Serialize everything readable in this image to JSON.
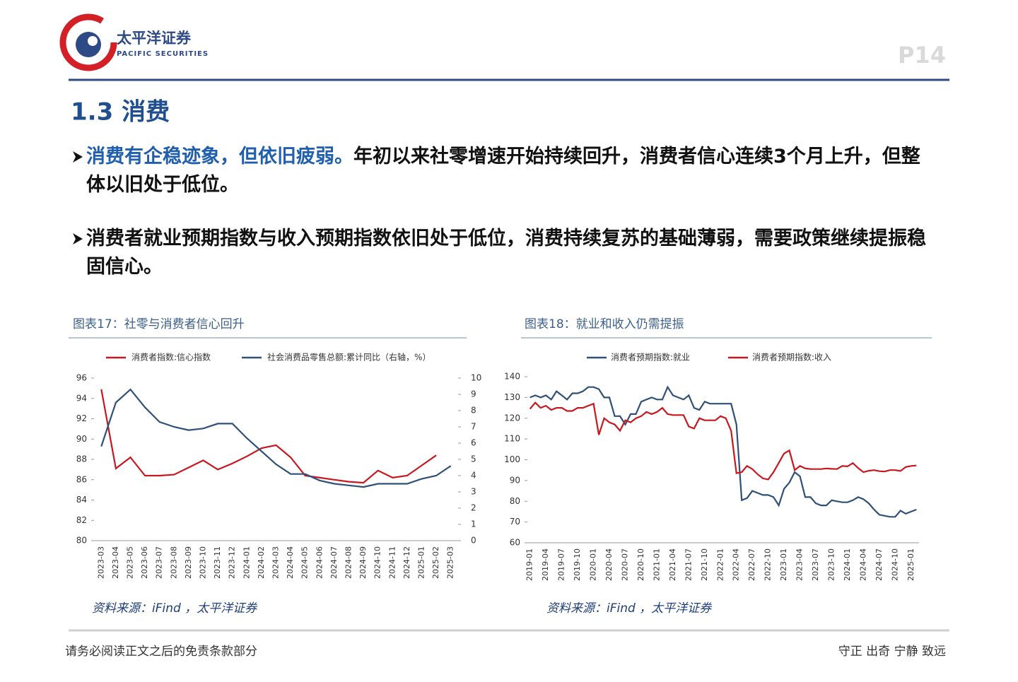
{
  "header": {
    "company": "太平洋证券",
    "company_en": "PACIFIC SECURITIES",
    "page": "P14"
  },
  "section": {
    "title": "1.3 消费"
  },
  "bullets": [
    {
      "highlight": "消费有企稳迹象，但依旧疲弱。",
      "text": "年初以来社零增速开始持续回升，消费者信心连续3个月上升，但整体以旧处于低位。"
    },
    {
      "text": "消费者就业预期指数与收入预期指数依旧处于低位，消费持续复苏的基础薄弱，需要政策继续提振稳固信心。"
    }
  ],
  "charts": [
    {
      "type": "line",
      "caption": "图表17：社零与消费者信心回升",
      "source": "资料来源：iFind ，太平洋证券",
      "categories": [
        "2023-03",
        "2023-04",
        "2023-05",
        "2023-06",
        "2023-07",
        "2023-08",
        "2023-09",
        "2023-10",
        "2023-11",
        "2023-12",
        "2024-01",
        "2024-02",
        "2024-03",
        "2024-04",
        "2024-05",
        "2024-06",
        "2024-07",
        "2024-08",
        "2024-09",
        "2024-10",
        "2024-11",
        "2024-12",
        "2025-01",
        "2025-02",
        "2025-03"
      ],
      "series": [
        {
          "name": "消费者指数:信心指数",
          "color": "#c8171e",
          "values": [
            94.9,
            87.1,
            88.2,
            86.4,
            86.4,
            86.5,
            87.2,
            87.9,
            87.0,
            87.6,
            88.3,
            89.1,
            89.4,
            88.2,
            86.4,
            86.2,
            86.0,
            85.8,
            85.7,
            86.9,
            86.2,
            86.4,
            87.4,
            88.4,
            null
          ]
        },
        {
          "name": "社会消费品零售总额:累计同比（右轴，%）",
          "color": "#2f5077",
          "axis": "y2",
          "values": [
            5.8,
            8.5,
            9.3,
            8.2,
            7.3,
            7.0,
            6.8,
            6.9,
            7.2,
            7.2,
            6.3,
            5.5,
            4.7,
            4.1,
            4.1,
            3.7,
            3.5,
            3.4,
            3.3,
            3.5,
            3.5,
            3.5,
            3.8,
            4.0,
            4.6
          ]
        }
      ],
      "ylim": [
        80,
        96
      ],
      "yticks": [
        80,
        82,
        84,
        86,
        88,
        90,
        92,
        94,
        96
      ],
      "y2lim": [
        0,
        10
      ],
      "y2ticks": [
        0,
        1,
        2,
        3,
        4,
        5,
        6,
        7,
        8,
        9,
        10
      ],
      "grid": false
    },
    {
      "type": "line",
      "caption": "图表18：就业和收入仍需提振",
      "source": "资料来源：iFind ，太平洋证券",
      "categories": [
        "2019-01",
        null,
        null,
        "2019-04",
        null,
        null,
        "2019-07",
        null,
        null,
        "2019-10",
        null,
        null,
        "2020-01",
        null,
        null,
        "2020-04",
        null,
        null,
        "2020-07",
        null,
        null,
        "2020-10",
        null,
        null,
        "2021-01",
        null,
        null,
        "2021-04",
        null,
        null,
        "2021-07",
        null,
        null,
        "2021-10",
        null,
        null,
        "2022-01",
        null,
        null,
        "2022-04",
        null,
        null,
        "2022-07",
        null,
        null,
        "2022-10",
        null,
        null,
        "2023-01",
        null,
        null,
        "2023-04",
        null,
        null,
        "2023-07",
        null,
        null,
        "2023-10",
        null,
        null,
        "2024-01",
        null,
        null,
        "2024-04",
        null,
        null,
        "2024-07",
        null,
        null,
        "2024-10",
        null,
        null,
        "2025-01",
        null
      ],
      "series": [
        {
          "name": "消费者预期指数:就业",
          "color": "#2f5077",
          "values": [
            130,
            131,
            130,
            131,
            129,
            133,
            131,
            129,
            132,
            132,
            133,
            135,
            135,
            134,
            130,
            130,
            121,
            121,
            117,
            122,
            122,
            128,
            129,
            130,
            129,
            129,
            135,
            131,
            130,
            129,
            131,
            125,
            124,
            128,
            127,
            127,
            127,
            127,
            127,
            117,
            80.5,
            81.5,
            85,
            84,
            83,
            83,
            82,
            78,
            86,
            89,
            94,
            92,
            82,
            82,
            79,
            78,
            78,
            80.5,
            80,
            79.5,
            79.5,
            80.5,
            82,
            81,
            79,
            76,
            73.5,
            73,
            72.5,
            72.5,
            75.5,
            74,
            75,
            76
          ]
        },
        {
          "name": "消费者预期指数:收入",
          "color": "#c8171e",
          "values": [
            124.5,
            127.5,
            125,
            126,
            124,
            125,
            125,
            123.5,
            123.5,
            125,
            125,
            126,
            127,
            112,
            120,
            118,
            117,
            114,
            119,
            118,
            120,
            121,
            123,
            122,
            123,
            125,
            122,
            121.5,
            121.5,
            121.5,
            116,
            115,
            120,
            119,
            119,
            119,
            121,
            120,
            114,
            93.5,
            94,
            97,
            95.5,
            93,
            91,
            90.5,
            94,
            98.5,
            103,
            104.5,
            95,
            97,
            95.8,
            95.5,
            95.5,
            95.5,
            95.8,
            95.6,
            95.5,
            97,
            96.8,
            98.4,
            96,
            94,
            94.7,
            95,
            94.5,
            94.3,
            95,
            95,
            94.6,
            96.5,
            97,
            97.2
          ]
        }
      ],
      "ylim": [
        60,
        140
      ],
      "yticks": [
        60,
        70,
        80,
        90,
        100,
        110,
        120,
        130,
        140
      ],
      "grid": false
    }
  ],
  "footer": {
    "disclaimer": "请务必阅读正文之后的免责条款部分",
    "motto": "守正 出奇 宁静 致远"
  }
}
